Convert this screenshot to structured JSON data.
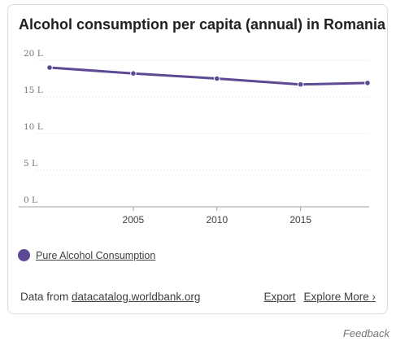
{
  "chart_data": {
    "type": "line",
    "title": "Alcohol consumption per capita (annual) in Romania",
    "x": [
      2000,
      2005,
      2010,
      2015,
      2019
    ],
    "series": [
      {
        "name": "Pure Alcohol Consumption",
        "values": [
          19.0,
          18.2,
          17.5,
          16.7,
          16.9
        ]
      }
    ],
    "ylim": [
      0,
      20
    ],
    "yticks": [
      "0 L",
      "5 L",
      "10 L",
      "15 L",
      "20 L"
    ],
    "xticks": [
      "2005",
      "2010",
      "2015"
    ],
    "xlim": [
      2000,
      2019
    ],
    "color": "#5c4a94",
    "grid": true,
    "legend": "bottom-left"
  },
  "source": {
    "prefix": "Data from ",
    "link": "datacatalog.worldbank.org"
  },
  "actions": {
    "export": "Export",
    "explore": "Explore More ›"
  },
  "feedback": "Feedback"
}
